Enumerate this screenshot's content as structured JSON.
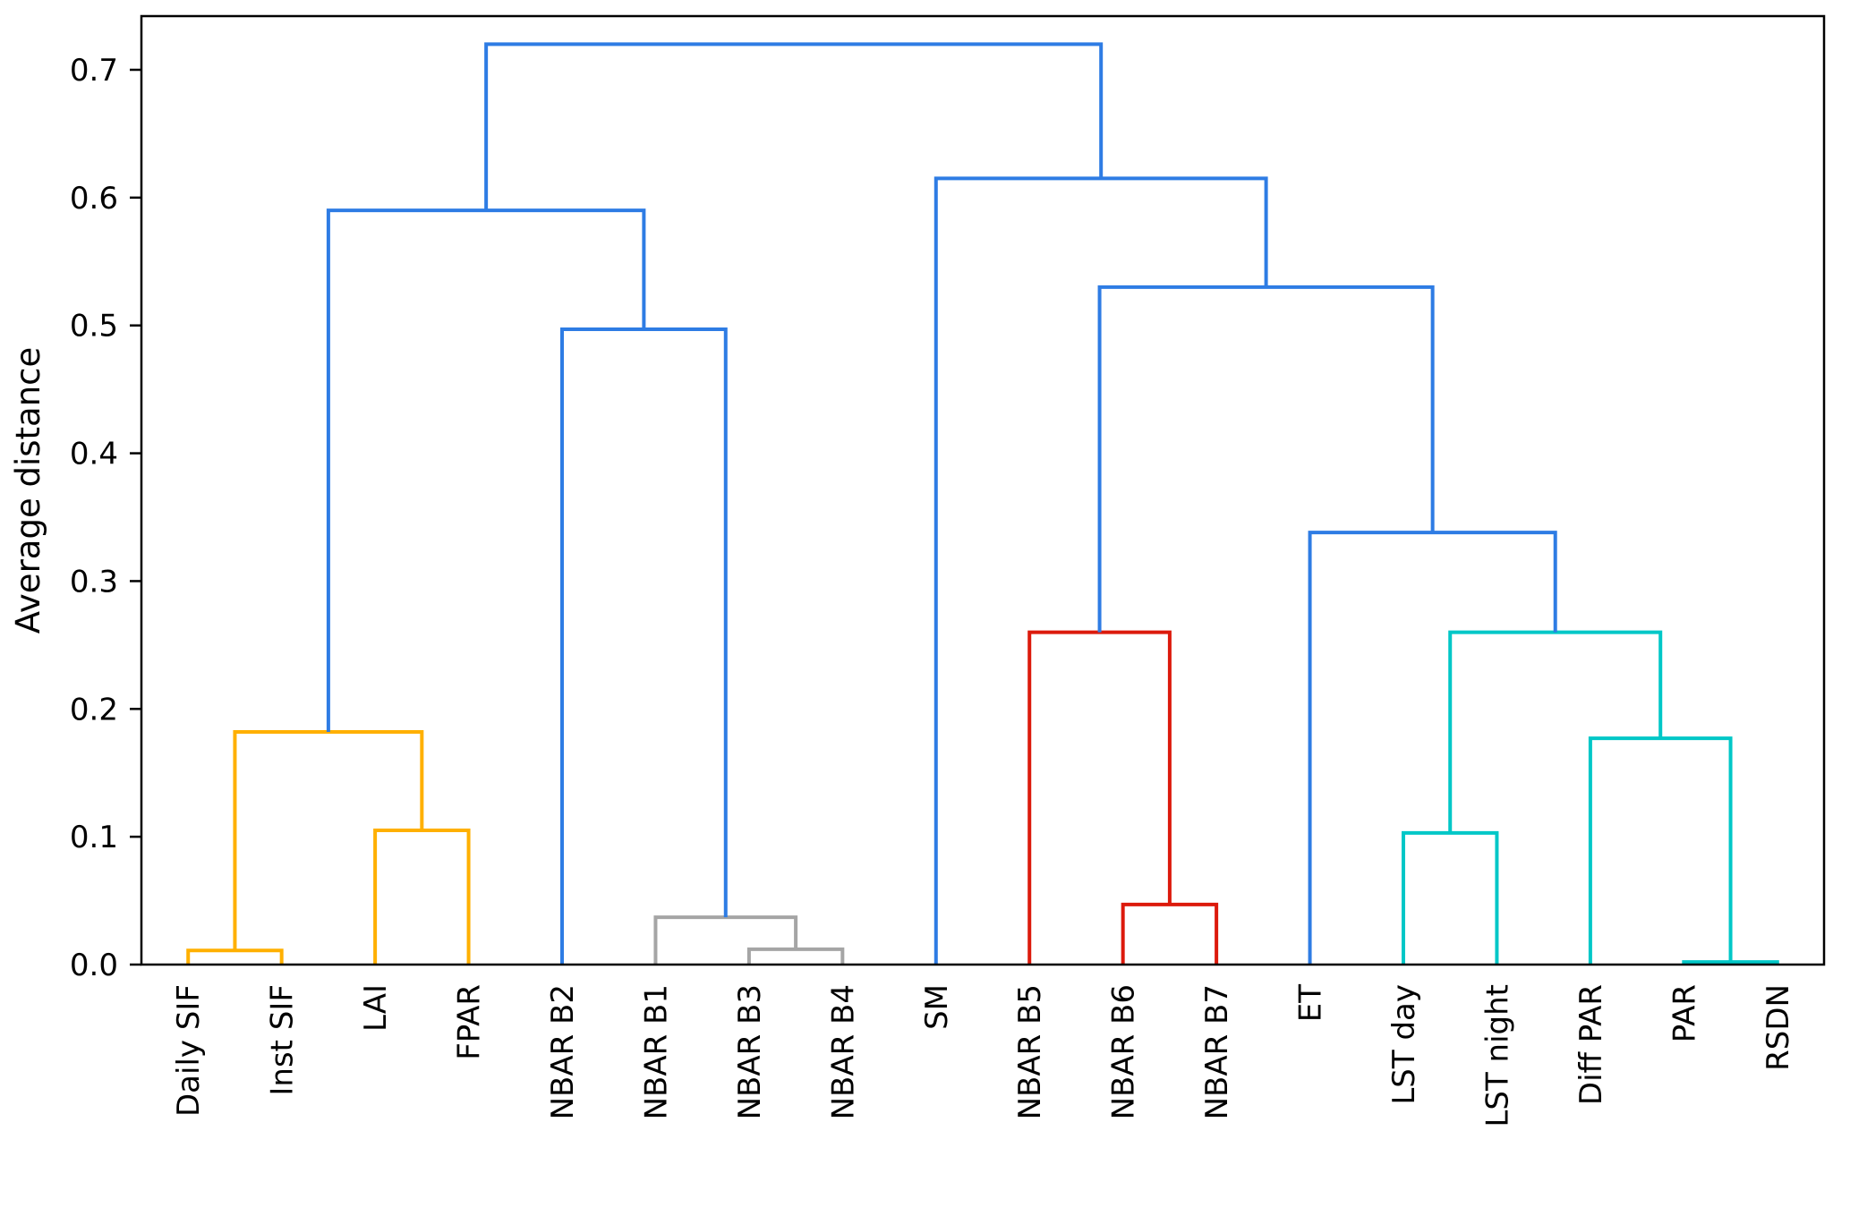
{
  "chart_data": {
    "type": "dendrogram",
    "title": "",
    "ylabel": "Average distance",
    "ylim": [
      0.0,
      0.742
    ],
    "yticks": [
      0.0,
      0.1,
      0.2,
      0.3,
      0.4,
      0.5,
      0.6,
      0.7
    ],
    "grid": false,
    "legend": "none",
    "leaves": [
      "Daily SIF",
      "Inst SIF",
      "LAI",
      "FPAR",
      "NBAR B2",
      "NBAR B1",
      "NBAR B3",
      "NBAR B4",
      "SM",
      "NBAR B5",
      "NBAR B6",
      "NBAR B7",
      "ET",
      "LST day",
      "LST night",
      "Diff PAR",
      "PAR",
      "RSDN"
    ],
    "colors": {
      "blue": "#2e7ce4",
      "orange": "#ffb000",
      "gray": "#a5a5a5",
      "red": "#dc1a0c",
      "cyan": "#00c7c7",
      "axis": "#000000"
    },
    "merges": [
      {
        "a": "L0",
        "b": "L1",
        "h": 0.011,
        "color": "orange",
        "desc": "Daily SIF + Inst SIF"
      },
      {
        "a": "L2",
        "b": "L3",
        "h": 0.105,
        "color": "orange",
        "desc": "LAI + FPAR"
      },
      {
        "a": "M0",
        "b": "M1",
        "h": 0.182,
        "color": "orange",
        "desc": "(Daily SIF,Inst SIF) + (LAI,FPAR)"
      },
      {
        "a": "L6",
        "b": "L7",
        "h": 0.012,
        "color": "gray",
        "desc": "NBAR B3 + NBAR B4"
      },
      {
        "a": "L5",
        "b": "M3",
        "h": 0.037,
        "color": "gray",
        "desc": "NBAR B1 + (NBAR B3,NBAR B4)"
      },
      {
        "a": "L4",
        "b": "M4",
        "h": 0.497,
        "color": "blue",
        "desc": "NBAR B2 + (NBAR B1,B3,B4)"
      },
      {
        "a": "M2",
        "b": "M5",
        "h": 0.59,
        "color": "blue",
        "desc": "SIF/LAI/FPAR cluster + NBAR B1-B4 cluster"
      },
      {
        "a": "L10",
        "b": "L11",
        "h": 0.047,
        "color": "red",
        "desc": "NBAR B6 + NBAR B7"
      },
      {
        "a": "L9",
        "b": "M7",
        "h": 0.26,
        "color": "red",
        "desc": "NBAR B5 + (NBAR B6,NBAR B7)"
      },
      {
        "a": "L13",
        "b": "L14",
        "h": 0.103,
        "color": "cyan",
        "desc": "LST day + LST night"
      },
      {
        "a": "L16",
        "b": "L17",
        "h": 0.002,
        "color": "cyan",
        "desc": "PAR + RSDN"
      },
      {
        "a": "L15",
        "b": "M10",
        "h": 0.177,
        "color": "cyan",
        "desc": "Diff PAR + (PAR,RSDN)"
      },
      {
        "a": "M9",
        "b": "M11",
        "h": 0.26,
        "color": "cyan",
        "desc": "(LST day,LST night) + (Diff PAR,PAR,RSDN)"
      },
      {
        "a": "L12",
        "b": "M12",
        "h": 0.338,
        "color": "blue",
        "desc": "ET + radiation/LST cluster"
      },
      {
        "a": "M8",
        "b": "M13",
        "h": 0.53,
        "color": "blue",
        "desc": "NBAR B5-B7 cluster + ET/radiation cluster"
      },
      {
        "a": "L8",
        "b": "M14",
        "h": 0.615,
        "color": "blue",
        "desc": "SM + right cluster"
      },
      {
        "a": "M6",
        "b": "M15",
        "h": 0.72,
        "color": "blue",
        "desc": "root merge"
      }
    ]
  }
}
